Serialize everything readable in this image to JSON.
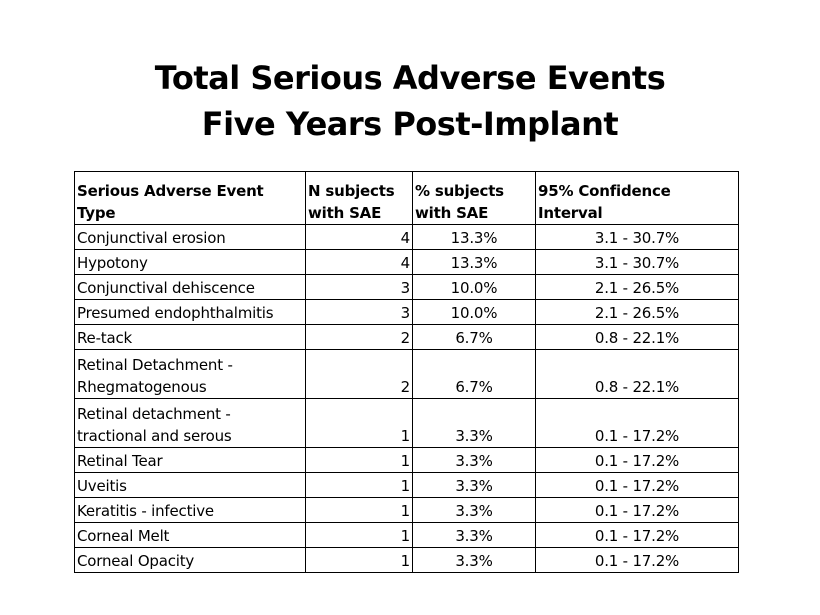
{
  "title": {
    "line1": "Total Serious Adverse Events",
    "line2": "Five Years Post-Implant"
  },
  "table": {
    "headers": {
      "type": "Serious Adverse Event Type",
      "n": "N subjects with SAE",
      "pct": "% subjects with SAE",
      "ci": "95% Confidence Interval"
    },
    "rows": [
      {
        "type": "Conjunctival erosion",
        "n": "4",
        "pct": "13.3%",
        "ci": "3.1 - 30.7%"
      },
      {
        "type": "Hypotony",
        "n": "4",
        "pct": "13.3%",
        "ci": "3.1 - 30.7%"
      },
      {
        "type": "Conjunctival dehiscence",
        "n": "3",
        "pct": "10.0%",
        "ci": "2.1 - 26.5%"
      },
      {
        "type": "Presumed endophthalmitis",
        "n": "3",
        "pct": "10.0%",
        "ci": "2.1 - 26.5%"
      },
      {
        "type": "Re-tack",
        "n": "2",
        "pct": "6.7%",
        "ci": "0.8 - 22.1%"
      },
      {
        "type": "Retinal Detachment - Rhegmatogenous",
        "n": "2",
        "pct": "6.7%",
        "ci": "0.8 - 22.1%"
      },
      {
        "type": "Retinal detachment - tractional and serous",
        "n": "1",
        "pct": "3.3%",
        "ci": "0.1 - 17.2%"
      },
      {
        "type": "Retinal Tear",
        "n": "1",
        "pct": "3.3%",
        "ci": "0.1 - 17.2%"
      },
      {
        "type": "Uveitis",
        "n": "1",
        "pct": "3.3%",
        "ci": "0.1 - 17.2%"
      },
      {
        "type": "Keratitis - infective",
        "n": "1",
        "pct": "3.3%",
        "ci": "0.1 - 17.2%"
      },
      {
        "type": "Corneal Melt",
        "n": "1",
        "pct": "3.3%",
        "ci": "0.1 - 17.2%"
      },
      {
        "type": "Corneal Opacity",
        "n": "1",
        "pct": "3.3%",
        "ci": "0.1 - 17.2%"
      }
    ]
  }
}
